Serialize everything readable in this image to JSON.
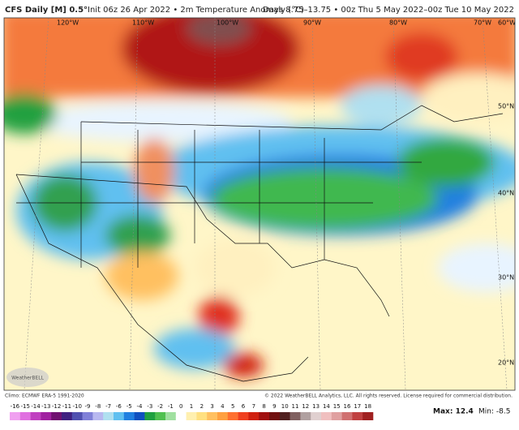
{
  "header": {
    "model": "CFS Daily [M] 0.5°",
    "description": "Init 06z 26 Apr 2022 • 2m Temperature Anomaly (°C)",
    "valid": "Days 8.75–13.75 • 00z Thu 5 May 2022–00z Tue 10 May 2022"
  },
  "longitudes": [
    "120°W",
    "110°W",
    "100°W",
    "90°W",
    "80°W",
    "70°W",
    "60°W"
  ],
  "latitudes": [
    "50°N",
    "40°N",
    "30°N",
    "20°N"
  ],
  "logo": "WeatherBELL",
  "climo": "Climo: ECMWF ERA-5 1991-2020",
  "copyright": "© 2022 WeatherBELL Analytics, LLC. All rights reserved. License required for commercial distribution.",
  "stats": {
    "max": "Max: 12.4",
    "min": "Min: -8.5"
  },
  "colorbar": {
    "ticks": [
      -16,
      -15,
      -14,
      -13,
      -12,
      -11,
      -10,
      -9,
      -8,
      -7,
      -6,
      -5,
      -4,
      -3,
      -2,
      -1,
      0,
      1,
      2,
      3,
      4,
      5,
      6,
      7,
      8,
      9,
      10,
      11,
      12,
      13,
      14,
      15,
      16,
      17,
      18
    ],
    "colors": [
      "#f0a0f0",
      "#e070e0",
      "#c040c0",
      "#a020a0",
      "#701070",
      "#402080",
      "#5050b0",
      "#8080d8",
      "#b8b8f0",
      "#b0e0f0",
      "#60c0f0",
      "#2080e0",
      "#1050c0",
      "#20a040",
      "#50c050",
      "#a0e0a0",
      "#ffffff",
      "#fff0b0",
      "#ffe080",
      "#ffc060",
      "#ffa040",
      "#ff7030",
      "#f04020",
      "#d02010",
      "#a01010",
      "#701010",
      "#502020",
      "#806060",
      "#b0a0a0",
      "#e0d0d0",
      "#f0c0c0",
      "#e0a0a0",
      "#d07070",
      "#c04040",
      "#a02020"
    ]
  }
}
